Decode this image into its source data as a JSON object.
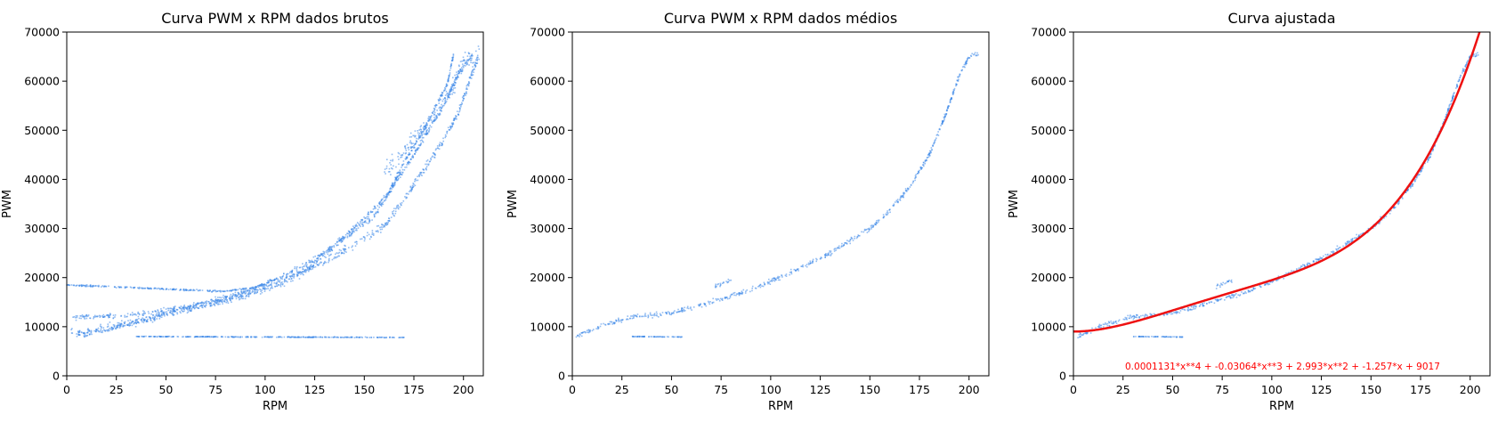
{
  "figure": {
    "colors": {
      "scatter": "#3a86e8",
      "fit": "#ee1111",
      "axis": "#000000",
      "equation": "#ff0000"
    }
  },
  "chart_data": [
    {
      "type": "scatter",
      "title": "Curva PWM x RPM dados brutos",
      "xlabel": "RPM",
      "ylabel": "PWM",
      "xlim": [
        0,
        210
      ],
      "ylim": [
        0,
        70000
      ],
      "xticks": [
        "0",
        "25",
        "50",
        "75",
        "100",
        "125",
        "150",
        "175",
        "200"
      ],
      "yticks": [
        "0",
        "10000",
        "20000",
        "30000",
        "40000",
        "50000",
        "60000",
        "70000"
      ],
      "grid": false,
      "series": [
        {
          "bands": [
            {
              "points": [
                [
                  2,
                  11800
                ],
                [
                  30,
                  12300
                ],
                [
                  60,
                  14000
                ],
                [
                  90,
                  17000
                ],
                [
                  110,
                  20500
                ],
                [
                  130,
                  25000
                ],
                [
                  150,
                  32000
                ],
                [
                  162,
                  37000
                ],
                [
                  170,
                  43500
                ],
                [
                  180,
                  50000
                ],
                [
                  192,
                  59500
                ],
                [
                  195,
                  65500
                ]
              ],
              "spread": 700
            },
            {
              "points": [
                [
                  2,
                  9000
                ],
                [
                  10,
                  8200
                ],
                [
                  30,
                  10500
                ],
                [
                  60,
                  13500
                ],
                [
                  90,
                  16200
                ],
                [
                  120,
                  21500
                ],
                [
                  140,
                  28000
                ],
                [
                  155,
                  32500
                ],
                [
                  165,
                  39000
                ],
                [
                  175,
                  45000
                ],
                [
                  190,
                  55000
                ],
                [
                  198,
                  62000
                ],
                [
                  205,
                  65500
                ]
              ],
              "spread": 900
            },
            {
              "points": [
                [
                  5,
                  8500
                ],
                [
                  40,
                  11500
                ],
                [
                  80,
                  15500
                ],
                [
                  110,
                  19000
                ],
                [
                  135,
                  24500
                ],
                [
                  150,
                  28000
                ],
                [
                  160,
                  30500
                ],
                [
                  170,
                  36000
                ],
                [
                  180,
                  42000
                ],
                [
                  190,
                  48000
                ],
                [
                  198,
                  54000
                ],
                [
                  203,
                  60000
                ],
                [
                  208,
                  65500
                ]
              ],
              "spread": 1200
            },
            {
              "points": [
                [
                  160,
                  41500
                ],
                [
                  175,
                  48000
                ],
                [
                  185,
                  52500
                ],
                [
                  195,
                  59000
                ],
                [
                  200,
                  64000
                ],
                [
                  208,
                  66000
                ]
              ],
              "spread": 2500
            },
            {
              "points": [
                [
                  0,
                  18500
                ],
                [
                  30,
                  18000
                ],
                [
                  60,
                  17500
                ],
                [
                  80,
                  17200
                ],
                [
                  95,
                  18000
                ],
                [
                  105,
                  19500
                ]
              ],
              "spread": 250
            },
            {
              "points": [
                [
                  35,
                  8000
                ],
                [
                  100,
                  7900
                ],
                [
                  170,
                  7800
                ]
              ],
              "spread": 100
            }
          ]
        }
      ]
    },
    {
      "type": "scatter",
      "title": "Curva PWM x RPM dados médios",
      "xlabel": "RPM",
      "ylabel": "PWM",
      "xlim": [
        0,
        210
      ],
      "ylim": [
        0,
        70000
      ],
      "xticks": [
        "0",
        "25",
        "50",
        "75",
        "100",
        "125",
        "150",
        "175",
        "200"
      ],
      "yticks": [
        "0",
        "10000",
        "20000",
        "30000",
        "40000",
        "50000",
        "60000",
        "70000"
      ],
      "grid": false,
      "series": [
        {
          "bands": [
            {
              "points": [
                [
                  2,
                  8000
                ],
                [
                  15,
                  10200
                ],
                [
                  30,
                  12000
                ],
                [
                  50,
                  12800
                ],
                [
                  70,
                  15000
                ],
                [
                  90,
                  17500
                ],
                [
                  110,
                  21000
                ],
                [
                  130,
                  25000
                ],
                [
                  150,
                  30000
                ],
                [
                  160,
                  33500
                ],
                [
                  170,
                  38500
                ],
                [
                  180,
                  45000
                ],
                [
                  188,
                  53000
                ],
                [
                  195,
                  61000
                ],
                [
                  200,
                  65000
                ],
                [
                  205,
                  65500
                ]
              ],
              "spread": 700
            },
            {
              "points": [
                [
                  72,
                  18200
                ],
                [
                  80,
                  19500
                ]
              ],
              "spread": 600
            },
            {
              "points": [
                [
                  30,
                  8000
                ],
                [
                  56,
                  7900
                ]
              ],
              "spread": 80
            }
          ]
        }
      ]
    },
    {
      "type": "scatter",
      "title": "Curva ajustada",
      "xlabel": "RPM",
      "ylabel": "PWM",
      "xlim": [
        0,
        210
      ],
      "ylim": [
        0,
        70000
      ],
      "xticks": [
        "0",
        "25",
        "50",
        "75",
        "100",
        "125",
        "150",
        "175",
        "200"
      ],
      "yticks": [
        "0",
        "10000",
        "20000",
        "30000",
        "40000",
        "50000",
        "60000",
        "70000"
      ],
      "grid": false,
      "series": [
        {
          "bands": [
            {
              "points": [
                [
                  2,
                  8000
                ],
                [
                  15,
                  10200
                ],
                [
                  30,
                  12000
                ],
                [
                  50,
                  12800
                ],
                [
                  70,
                  15000
                ],
                [
                  90,
                  17500
                ],
                [
                  110,
                  21000
                ],
                [
                  130,
                  25000
                ],
                [
                  150,
                  30000
                ],
                [
                  160,
                  33500
                ],
                [
                  170,
                  38500
                ],
                [
                  180,
                  45000
                ],
                [
                  188,
                  53000
                ],
                [
                  195,
                  61000
                ],
                [
                  200,
                  65000
                ],
                [
                  205,
                  65500
                ]
              ],
              "spread": 700
            },
            {
              "points": [
                [
                  72,
                  18200
                ],
                [
                  80,
                  19500
                ]
              ],
              "spread": 600
            },
            {
              "points": [
                [
                  30,
                  8000
                ],
                [
                  56,
                  7900
                ]
              ],
              "spread": 80
            }
          ]
        }
      ],
      "fit": {
        "coefficients": [
          0.0001131,
          -0.03064,
          2.993,
          -1.257,
          9017
        ],
        "x_range": [
          0,
          210
        ],
        "label": "0.0001131*x**4 + -0.03064*x**3 + 2.993*x**2 + -1.257*x + 9017"
      }
    }
  ]
}
